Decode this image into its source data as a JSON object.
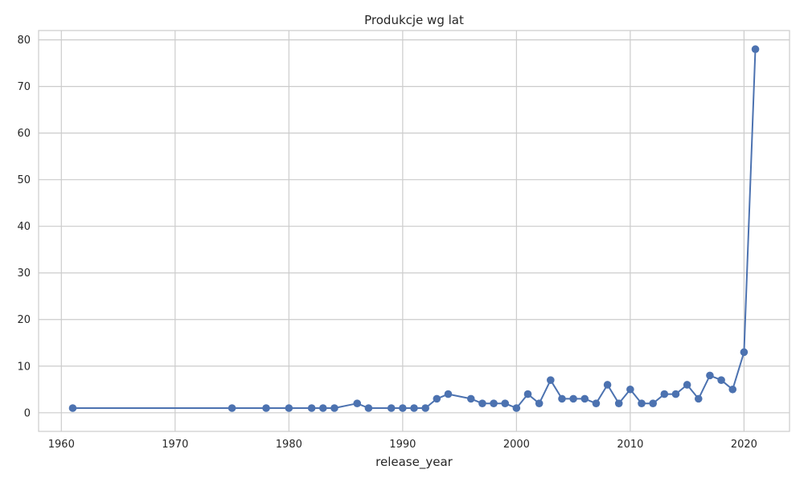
{
  "chart_data": {
    "type": "line",
    "title": "Produkcje wg lat",
    "xlabel": "release_year",
    "ylabel": "",
    "xlim": [
      1958,
      2024
    ],
    "ylim": [
      -4,
      82
    ],
    "x_ticks": [
      1960,
      1970,
      1980,
      1990,
      2000,
      2010,
      2020
    ],
    "y_ticks": [
      0,
      10,
      20,
      30,
      40,
      50,
      60,
      70,
      80
    ],
    "grid": true,
    "legend": "none",
    "series": [
      {
        "color": "#4c72b0",
        "marker": "circle",
        "x": [
          1961,
          1975,
          1978,
          1980,
          1982,
          1983,
          1984,
          1986,
          1987,
          1989,
          1990,
          1991,
          1992,
          1993,
          1994,
          1996,
          1997,
          1998,
          1999,
          2000,
          2001,
          2002,
          2003,
          2004,
          2005,
          2006,
          2007,
          2008,
          2009,
          2010,
          2011,
          2012,
          2013,
          2014,
          2015,
          2016,
          2017,
          2018,
          2019,
          2020,
          2021
        ],
        "values": [
          1,
          1,
          1,
          1,
          1,
          1,
          1,
          2,
          1,
          1,
          1,
          1,
          1,
          3,
          4,
          3,
          2,
          2,
          2,
          1,
          4,
          2,
          7,
          3,
          3,
          3,
          2,
          6,
          2,
          5,
          2,
          2,
          4,
          4,
          6,
          3,
          8,
          7,
          5,
          13,
          78
        ]
      }
    ]
  }
}
